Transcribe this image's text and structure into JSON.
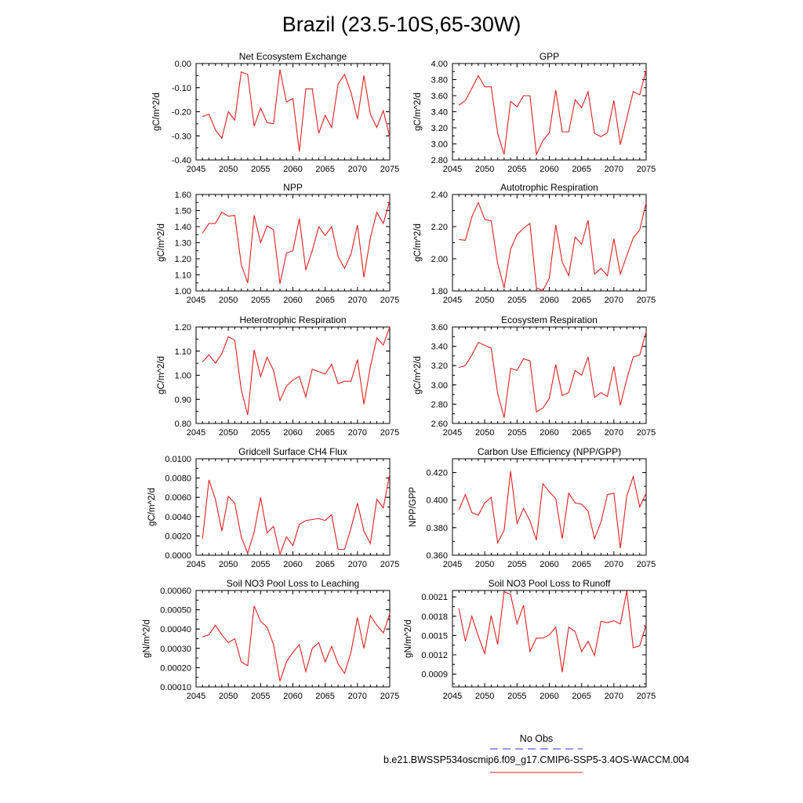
{
  "title": "Brazil (23.5-10S,65-30W)",
  "legend": {
    "items": [
      {
        "label": "No Obs",
        "color": "#3333cc",
        "dash": true
      },
      {
        "label": "b.e21.BWSSP534oscmip6.f09_g17.CMIP6-SSP5-3.4OS-WACCM.004",
        "color": "#e02020",
        "dash": false
      }
    ]
  },
  "chart_data": [
    {
      "type": "line",
      "title": "Net Ecosystem Exchange",
      "ylabel": "gC/m^2/d",
      "xlim": [
        2045,
        2075
      ],
      "ylim": [
        -0.4,
        0.0
      ],
      "xticks": [
        "2045",
        "2050",
        "2055",
        "2060",
        "2065",
        "2070",
        "2075"
      ],
      "yticks": [
        "-0.40",
        "-0.30",
        "-0.20",
        "-0.10",
        "0.00"
      ],
      "ytick_values": [
        -0.4,
        -0.3,
        -0.2,
        -0.1,
        0.0
      ],
      "x": [
        2046,
        2047,
        2048,
        2049,
        2050,
        2051,
        2052,
        2053,
        2054,
        2055,
        2056,
        2057,
        2058,
        2059,
        2060,
        2061,
        2062,
        2063,
        2064,
        2065,
        2066,
        2067,
        2068,
        2069,
        2070,
        2071,
        2072,
        2073,
        2074,
        2075
      ],
      "series": [
        {
          "color": "#e02020",
          "values": [
            -0.22,
            -0.21,
            -0.275,
            -0.31,
            -0.2,
            -0.235,
            -0.035,
            -0.045,
            -0.26,
            -0.185,
            -0.245,
            -0.25,
            -0.025,
            -0.16,
            -0.145,
            -0.365,
            -0.105,
            -0.105,
            -0.29,
            -0.215,
            -0.265,
            -0.085,
            -0.045,
            -0.12,
            -0.23,
            -0.05,
            -0.21,
            -0.265,
            -0.195,
            -0.305
          ]
        }
      ]
    },
    {
      "type": "line",
      "title": "GPP",
      "ylabel": "gC/m^2/d",
      "xlim": [
        2045,
        2075
      ],
      "ylim": [
        2.8,
        4.0
      ],
      "xticks": [
        "2045",
        "2050",
        "2055",
        "2060",
        "2065",
        "2070",
        "2075"
      ],
      "yticks": [
        "2.80",
        "3.00",
        "3.20",
        "3.40",
        "3.60",
        "3.80",
        "4.00"
      ],
      "ytick_values": [
        2.8,
        3.0,
        3.2,
        3.4,
        3.6,
        3.8,
        4.0
      ],
      "x": [
        2046,
        2047,
        2048,
        2049,
        2050,
        2051,
        2052,
        2053,
        2054,
        2055,
        2056,
        2057,
        2058,
        2059,
        2060,
        2061,
        2062,
        2063,
        2064,
        2065,
        2066,
        2067,
        2068,
        2069,
        2070,
        2071,
        2072,
        2073,
        2074,
        2075
      ],
      "series": [
        {
          "color": "#e02020",
          "values": [
            3.48,
            3.54,
            3.69,
            3.85,
            3.71,
            3.71,
            3.13,
            2.87,
            3.53,
            3.46,
            3.6,
            3.6,
            2.87,
            3.04,
            3.14,
            3.67,
            3.15,
            3.15,
            3.55,
            3.45,
            3.65,
            3.13,
            3.09,
            3.14,
            3.54,
            2.99,
            3.32,
            3.65,
            3.61,
            3.92
          ]
        }
      ]
    },
    {
      "type": "line",
      "title": "NPP",
      "ylabel": "gC/m^2/d",
      "xlim": [
        2045,
        2075
      ],
      "ylim": [
        1.0,
        1.6
      ],
      "xticks": [
        "2045",
        "2050",
        "2055",
        "2060",
        "2065",
        "2070",
        "2075"
      ],
      "yticks": [
        "1.00",
        "1.10",
        "1.20",
        "1.30",
        "1.40",
        "1.50",
        "1.60"
      ],
      "ytick_values": [
        1.0,
        1.1,
        1.2,
        1.3,
        1.4,
        1.5,
        1.6
      ],
      "x": [
        2046,
        2047,
        2048,
        2049,
        2050,
        2051,
        2052,
        2053,
        2054,
        2055,
        2056,
        2057,
        2058,
        2059,
        2060,
        2061,
        2062,
        2063,
        2064,
        2065,
        2066,
        2067,
        2068,
        2069,
        2070,
        2071,
        2072,
        2073,
        2074,
        2075
      ],
      "series": [
        {
          "color": "#e02020",
          "values": [
            1.36,
            1.42,
            1.42,
            1.49,
            1.465,
            1.47,
            1.165,
            1.05,
            1.47,
            1.3,
            1.405,
            1.38,
            1.045,
            1.235,
            1.25,
            1.45,
            1.13,
            1.25,
            1.4,
            1.345,
            1.4,
            1.215,
            1.14,
            1.23,
            1.41,
            1.085,
            1.33,
            1.49,
            1.42,
            1.56
          ]
        }
      ]
    },
    {
      "type": "line",
      "title": "Autotrophic Respiration",
      "ylabel": "gC/m^2/d",
      "xlim": [
        2045,
        2075
      ],
      "ylim": [
        1.8,
        2.4
      ],
      "xticks": [
        "2045",
        "2050",
        "2055",
        "2060",
        "2065",
        "2070",
        "2075"
      ],
      "yticks": [
        "1.80",
        "2.00",
        "2.20",
        "2.40"
      ],
      "ytick_values": [
        1.8,
        2.0,
        2.2,
        2.4
      ],
      "x": [
        2046,
        2047,
        2048,
        2049,
        2050,
        2051,
        2052,
        2053,
        2054,
        2055,
        2056,
        2057,
        2058,
        2059,
        2060,
        2061,
        2062,
        2063,
        2064,
        2065,
        2066,
        2067,
        2068,
        2069,
        2070,
        2071,
        2072,
        2073,
        2074,
        2075
      ],
      "series": [
        {
          "color": "#e02020",
          "values": [
            2.12,
            2.115,
            2.26,
            2.35,
            2.245,
            2.235,
            1.97,
            1.82,
            2.06,
            2.15,
            2.19,
            2.22,
            1.82,
            1.8,
            1.88,
            2.21,
            1.98,
            1.895,
            2.135,
            2.09,
            2.24,
            1.905,
            1.94,
            1.895,
            2.125,
            1.905,
            2.02,
            2.13,
            2.18,
            2.35
          ]
        }
      ]
    },
    {
      "type": "line",
      "title": "Heterotrophic Respiration",
      "ylabel": "gC/m^2/d",
      "xlim": [
        2045,
        2075
      ],
      "ylim": [
        0.8,
        1.2
      ],
      "xticks": [
        "2045",
        "2050",
        "2055",
        "2060",
        "2065",
        "2070",
        "2075"
      ],
      "yticks": [
        "0.80",
        "0.90",
        "1.00",
        "1.10",
        "1.20"
      ],
      "ytick_values": [
        0.8,
        0.9,
        1.0,
        1.1,
        1.2
      ],
      "x": [
        2046,
        2047,
        2048,
        2049,
        2050,
        2051,
        2052,
        2053,
        2054,
        2055,
        2056,
        2057,
        2058,
        2059,
        2060,
        2061,
        2062,
        2063,
        2064,
        2065,
        2066,
        2067,
        2068,
        2069,
        2070,
        2071,
        2072,
        2073,
        2074,
        2075
      ],
      "series": [
        {
          "color": "#e02020",
          "values": [
            1.055,
            1.085,
            1.05,
            1.09,
            1.16,
            1.145,
            0.94,
            0.835,
            1.105,
            0.995,
            1.075,
            1.02,
            0.895,
            0.955,
            0.98,
            0.995,
            0.91,
            1.025,
            1.015,
            1.005,
            1.045,
            0.965,
            0.975,
            0.975,
            1.065,
            0.88,
            1.035,
            1.155,
            1.125,
            1.2
          ]
        }
      ]
    },
    {
      "type": "line",
      "title": "Ecosystem Respiration",
      "ylabel": "gC/m^2/d",
      "xlim": [
        2045,
        2075
      ],
      "ylim": [
        2.6,
        3.6
      ],
      "xticks": [
        "2045",
        "2050",
        "2055",
        "2060",
        "2065",
        "2070",
        "2075"
      ],
      "yticks": [
        "2.60",
        "2.80",
        "3.00",
        "3.20",
        "3.40",
        "3.60"
      ],
      "ytick_values": [
        2.6,
        2.8,
        3.0,
        3.2,
        3.4,
        3.6
      ],
      "x": [
        2046,
        2047,
        2048,
        2049,
        2050,
        2051,
        2052,
        2053,
        2054,
        2055,
        2056,
        2057,
        2058,
        2059,
        2060,
        2061,
        2062,
        2063,
        2064,
        2065,
        2066,
        2067,
        2068,
        2069,
        2070,
        2071,
        2072,
        2073,
        2074,
        2075
      ],
      "series": [
        {
          "color": "#e02020",
          "values": [
            3.18,
            3.2,
            3.31,
            3.44,
            3.41,
            3.38,
            2.91,
            2.66,
            3.17,
            3.15,
            3.27,
            3.25,
            2.72,
            2.76,
            2.86,
            3.21,
            2.89,
            2.92,
            3.15,
            3.1,
            3.29,
            2.87,
            2.92,
            2.88,
            3.19,
            2.79,
            3.06,
            3.29,
            3.31,
            3.55
          ]
        }
      ]
    },
    {
      "type": "line",
      "title": "Gridcell Surface CH4 Flux",
      "ylabel": "gC/m^2/d",
      "xlim": [
        2045,
        2075
      ],
      "ylim": [
        0.0,
        0.01
      ],
      "xticks": [
        "2045",
        "2050",
        "2055",
        "2060",
        "2065",
        "2070",
        "2075"
      ],
      "yticks": [
        "0.0000",
        "0.0020",
        "0.0040",
        "0.0060",
        "0.0080",
        "0.0100"
      ],
      "ytick_values": [
        0.0,
        0.002,
        0.004,
        0.006,
        0.008,
        0.01
      ],
      "x": [
        2046,
        2047,
        2048,
        2049,
        2050,
        2051,
        2052,
        2053,
        2054,
        2055,
        2056,
        2057,
        2058,
        2059,
        2060,
        2061,
        2062,
        2063,
        2064,
        2065,
        2066,
        2067,
        2068,
        2069,
        2070,
        2071,
        2072,
        2073,
        2074,
        2075
      ],
      "series": [
        {
          "color": "#e02020",
          "values": [
            0.0017,
            0.0078,
            0.0058,
            0.0025,
            0.0061,
            0.0054,
            0.0019,
            0.0002,
            0.0024,
            0.006,
            0.0023,
            0.003,
            0.0001,
            0.0019,
            0.001,
            0.0032,
            0.0036,
            0.0037,
            0.0038,
            0.0036,
            0.0042,
            0.0006,
            0.0006,
            0.0028,
            0.0054,
            0.0025,
            0.0012,
            0.0058,
            0.0049,
            0.0084
          ]
        }
      ]
    },
    {
      "type": "line",
      "title": "Carbon Use Efficiency (NPP/GPP)",
      "ylabel": "NPP/GPP",
      "xlim": [
        2045,
        2075
      ],
      "ylim": [
        0.36,
        0.43
      ],
      "xticks": [
        "2045",
        "2050",
        "2055",
        "2060",
        "2065",
        "2070",
        "2075"
      ],
      "yticks": [
        "0.360",
        "0.380",
        "0.400",
        "0.420"
      ],
      "ytick_values": [
        0.36,
        0.38,
        0.4,
        0.42
      ],
      "x": [
        2046,
        2047,
        2048,
        2049,
        2050,
        2051,
        2052,
        2053,
        2054,
        2055,
        2056,
        2057,
        2058,
        2059,
        2060,
        2061,
        2062,
        2063,
        2064,
        2065,
        2066,
        2067,
        2068,
        2069,
        2070,
        2071,
        2072,
        2073,
        2074,
        2075
      ],
      "series": [
        {
          "color": "#e02020",
          "values": [
            0.393,
            0.404,
            0.391,
            0.389,
            0.398,
            0.402,
            0.369,
            0.378,
            0.421,
            0.383,
            0.394,
            0.385,
            0.371,
            0.412,
            0.406,
            0.401,
            0.372,
            0.405,
            0.398,
            0.397,
            0.392,
            0.372,
            0.384,
            0.404,
            0.405,
            0.365,
            0.403,
            0.417,
            0.395,
            0.405
          ]
        }
      ]
    },
    {
      "type": "line",
      "title": "Soil NO3 Pool Loss to Leaching",
      "ylabel": "gN/m^2/d",
      "xlim": [
        2045,
        2075
      ],
      "ylim": [
        0.0001,
        0.0006
      ],
      "xticks": [
        "2045",
        "2050",
        "2055",
        "2060",
        "2065",
        "2070",
        "2075"
      ],
      "yticks": [
        "0.00010",
        "0.00020",
        "0.00030",
        "0.00040",
        "0.00050",
        "0.00060"
      ],
      "ytick_values": [
        0.0001,
        0.0002,
        0.0003,
        0.0004,
        0.0005,
        0.0006
      ],
      "x": [
        2046,
        2047,
        2048,
        2049,
        2050,
        2051,
        2052,
        2053,
        2054,
        2055,
        2056,
        2057,
        2058,
        2059,
        2060,
        2061,
        2062,
        2063,
        2064,
        2065,
        2066,
        2067,
        2068,
        2069,
        2070,
        2071,
        2072,
        2073,
        2074,
        2075
      ],
      "series": [
        {
          "color": "#e02020",
          "values": [
            0.00036,
            0.00037,
            0.00042,
            0.00037,
            0.00033,
            0.00035,
            0.00023,
            0.00021,
            0.00052,
            0.00044,
            0.00041,
            0.00032,
            0.00013,
            0.00023,
            0.00028,
            0.00032,
            0.00018,
            0.0003,
            0.00033,
            0.00023,
            0.00031,
            0.00022,
            0.00017,
            0.00028,
            0.00046,
            0.0003,
            0.00047,
            0.00042,
            0.00038,
            0.00048
          ]
        }
      ]
    },
    {
      "type": "line",
      "title": "Soil NO3 Pool Loss to Runoff",
      "ylabel": "gN/m^2/d",
      "xlim": [
        2045,
        2075
      ],
      "ylim": [
        0.0007,
        0.0022
      ],
      "xticks": [
        "2045",
        "2050",
        "2055",
        "2060",
        "2065",
        "2070",
        "2075"
      ],
      "yticks": [
        "0.0009",
        "0.0012",
        "0.0015",
        "0.0018",
        "0.0021"
      ],
      "ytick_values": [
        0.0009,
        0.0012,
        0.0015,
        0.0018,
        0.0021
      ],
      "x": [
        2046,
        2047,
        2048,
        2049,
        2050,
        2051,
        2052,
        2053,
        2054,
        2055,
        2056,
        2057,
        2058,
        2059,
        2060,
        2061,
        2062,
        2063,
        2064,
        2065,
        2066,
        2067,
        2068,
        2069,
        2070,
        2071,
        2072,
        2073,
        2074,
        2075
      ],
      "series": [
        {
          "color": "#e02020",
          "values": [
            0.00192,
            0.00141,
            0.0018,
            0.00149,
            0.00122,
            0.00181,
            0.00136,
            0.00218,
            0.00214,
            0.00168,
            0.00197,
            0.00125,
            0.00146,
            0.00146,
            0.00151,
            0.00163,
            0.00093,
            0.00163,
            0.00156,
            0.00125,
            0.00141,
            0.00119,
            0.00172,
            0.0017,
            0.00173,
            0.00168,
            0.00219,
            0.00131,
            0.00134,
            0.00167
          ]
        }
      ]
    }
  ]
}
